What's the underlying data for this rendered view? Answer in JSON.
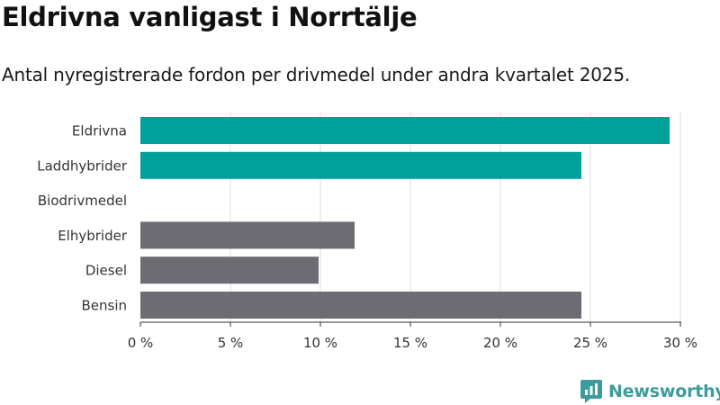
{
  "title": "Eldrivna vanligast i Norrtälje",
  "subtitle": "Antal nyregistrerade fordon per drivmedel under andra kvartalet 2025.",
  "brand": {
    "name": "Newsworthy",
    "icon": "newsworthy-logo-icon",
    "color": "#3d9b9e"
  },
  "colors": {
    "highlight": "#00a19a",
    "default": "#6d6c72",
    "grid": "#dddddd"
  },
  "chart_data": {
    "type": "bar",
    "orientation": "horizontal",
    "categories": [
      "Eldrivna",
      "Laddhybrider",
      "Biodrivmedel",
      "Elhybrider",
      "Diesel",
      "Bensin"
    ],
    "values": [
      29.4,
      24.5,
      0,
      11.9,
      9.9,
      24.5
    ],
    "highlighted": [
      true,
      true,
      false,
      false,
      false,
      false
    ],
    "xlim": [
      0,
      30
    ],
    "ticks": [
      0,
      5,
      10,
      15,
      20,
      25,
      30
    ],
    "tick_labels": [
      "0 %",
      "5 %",
      "10 %",
      "15 %",
      "20 %",
      "25 %",
      "30 %"
    ],
    "grid": true,
    "xlabel": "",
    "ylabel": ""
  }
}
